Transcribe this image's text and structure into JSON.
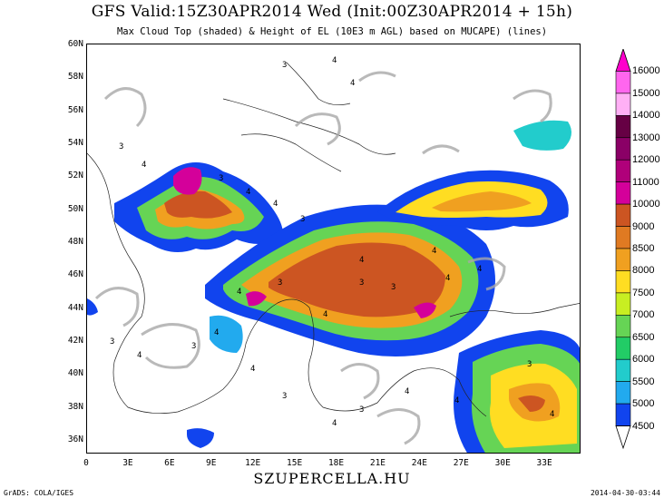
{
  "header": {
    "title": "GFS Valid:15Z30APR2014 Wed (Init:00Z30APR2014 + 15h)",
    "subtitle": "Max Cloud Top (shaded) & Height of EL (10E3 m AGL) based on MUCAPE) (lines)"
  },
  "map": {
    "latitude_labels": [
      "60N",
      "58N",
      "56N",
      "54N",
      "52N",
      "50N",
      "48N",
      "46N",
      "44N",
      "42N",
      "40N",
      "38N",
      "36N"
    ],
    "longitude_labels": [
      "0",
      "3E",
      "6E",
      "9E",
      "12E",
      "15E",
      "18E",
      "21E",
      "24E",
      "27E",
      "30E",
      "33E"
    ],
    "contour_labels": [
      "3",
      "4",
      "4",
      "3",
      "4",
      "3",
      "4",
      "4",
      "3",
      "4",
      "3",
      "4",
      "4",
      "3",
      "4",
      "3",
      "4",
      "4",
      "3",
      "4",
      "3",
      "4",
      "4",
      "3",
      "4",
      "3",
      "4",
      "4",
      "3",
      "4"
    ]
  },
  "colorbar": {
    "levels": [
      "16000",
      "15000",
      "14000",
      "13000",
      "12000",
      "11000",
      "10000",
      "9000",
      "8500",
      "8000",
      "7500",
      "7000",
      "6500",
      "6000",
      "5500",
      "5000",
      "4500"
    ],
    "colors": [
      "#ff00cc",
      "#ff66ee",
      "#ffb0f5",
      "#660044",
      "#8a0066",
      "#b0007a",
      "#d4009a",
      "#cc5522",
      "#e07a22",
      "#f0a020",
      "#ffdd22",
      "#c8ee22",
      "#66d455",
      "#22cc66",
      "#22cccc",
      "#22aaee",
      "#1144ee"
    ]
  },
  "branding": "SZUPERCELLA.HU",
  "footer": {
    "left": "GrADS: COLA/IGES",
    "right": "2014-04-30-03:44"
  }
}
